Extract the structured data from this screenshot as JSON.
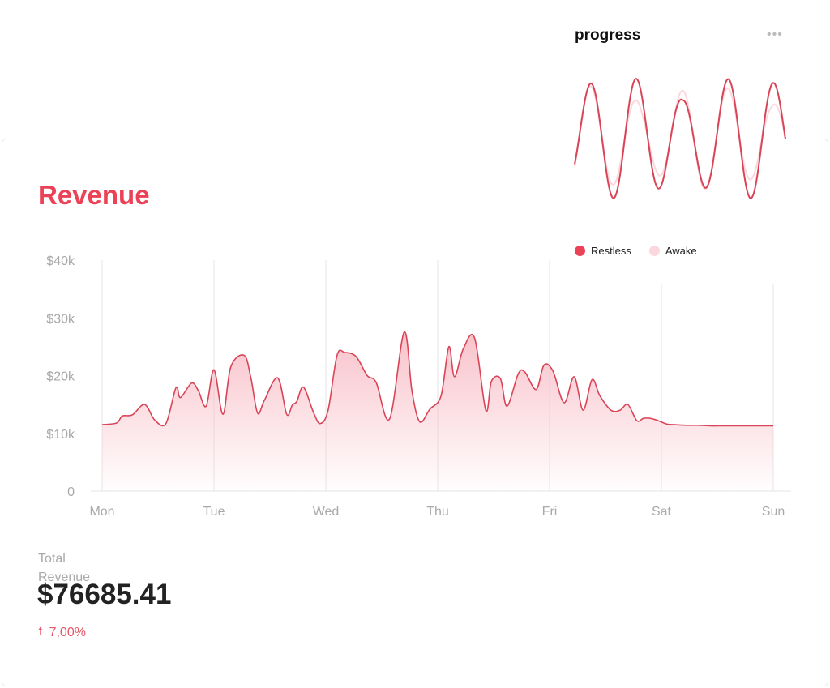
{
  "revenue": {
    "title": "Revenue",
    "total_label": "Total Revenue",
    "total_value": "$76685.41",
    "change": "7,00%",
    "change_icon": "arrow-up-icon"
  },
  "progress": {
    "title": "progress",
    "menu_icon": "more-horizontal-icon",
    "legend": [
      "Restless",
      "Awake"
    ]
  },
  "colors": {
    "accent": "#ec4257",
    "line": "#d94457",
    "fill": "#f7b7c1",
    "awake": "#fbd8de"
  },
  "chart_data": [
    {
      "type": "area",
      "title": "Revenue",
      "xlabel": "",
      "ylabel": "",
      "categories": [
        "Mon",
        "Tue",
        "Wed",
        "Thu",
        "Fri",
        "Sat",
        "Sun"
      ],
      "yticks": [
        "0",
        "$10k",
        "$20k",
        "$30k",
        "$40k"
      ],
      "ylim": [
        0,
        40000
      ],
      "grid": "vertical",
      "series": [
        {
          "x": [
            0,
            0.13,
            0.18,
            0.27,
            0.38,
            0.47,
            0.57,
            0.66,
            0.7,
            0.8,
            0.86,
            0.93,
            1.0,
            1.08,
            1.15,
            1.27,
            1.33,
            1.39,
            1.45,
            1.57,
            1.65,
            1.7,
            1.74,
            1.8,
            1.89,
            1.95,
            2.02,
            2.1,
            2.17,
            2.27,
            2.37,
            2.45,
            2.57,
            2.7,
            2.77,
            2.84,
            2.93,
            3.03,
            3.1,
            3.15,
            3.23,
            3.33,
            3.43,
            3.48,
            3.56,
            3.62,
            3.72,
            3.78,
            3.88,
            3.95,
            4.03,
            4.13,
            4.22,
            4.3,
            4.38,
            4.45,
            4.55,
            4.63,
            4.7,
            4.78,
            4.84,
            4.9,
            4.97,
            5.05,
            5.12,
            5.22,
            5.33,
            5.45,
            5.5,
            5.57,
            5.67,
            5.75,
            5.9,
            6.0
          ],
          "y": [
            11500,
            11800,
            13000,
            13200,
            15000,
            12300,
            11700,
            17900,
            16200,
            18700,
            17400,
            14700,
            21000,
            13300,
            21500,
            23500,
            19600,
            13500,
            15700,
            19600,
            13300,
            14900,
            15500,
            18000,
            13600,
            11700,
            14000,
            23500,
            24000,
            23300,
            20000,
            18800,
            12500,
            27500,
            17300,
            12000,
            14200,
            16500,
            25000,
            19800,
            24700,
            26500,
            14000,
            19000,
            19500,
            14700,
            20300,
            20600,
            17600,
            21800,
            20800,
            15300,
            19800,
            14000,
            19300,
            16500,
            14000,
            14000,
            15000,
            12200,
            12600,
            12600,
            12200,
            11600,
            11500,
            11400,
            11400,
            11300,
            11300,
            11300,
            11300,
            11300,
            11300,
            11300
          ]
        }
      ]
    },
    {
      "type": "line",
      "title": "progress",
      "series": [
        {
          "name": "Restless",
          "color": "#d94457",
          "cycles": 4.6,
          "amplitude": 1.0
        },
        {
          "name": "Awake",
          "color": "#fbd8de",
          "cycles": 4.6,
          "amplitude": 0.85
        }
      ]
    }
  ]
}
